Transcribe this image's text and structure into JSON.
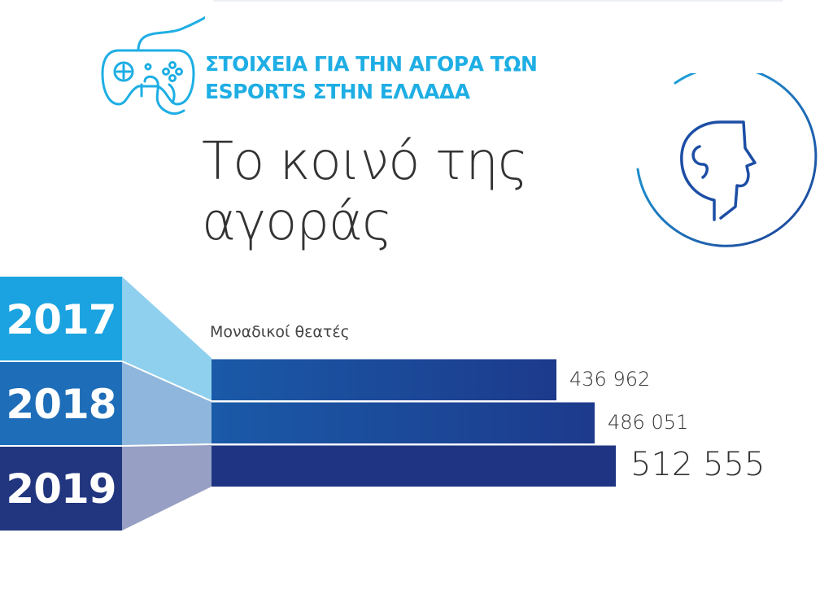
{
  "header": {
    "title_line1": "ΣΤΟΙΧΕΙΑ ΓΙΑ ΤΗΝ ΑΓΟΡΑ ΤΩΝ",
    "title_line2": "ESPORTS ΣΤΗΝ ΕΛΛΑΔΑ",
    "icon": "gamepad-icon"
  },
  "main": {
    "title_line1": "Το κοινό της",
    "title_line2": "αγοράς",
    "badge_icon": "head-profile-icon"
  },
  "colors": {
    "accent": "#1eaee4",
    "year_2017": "#1aa3e0",
    "year_2018": "#1d6db8",
    "year_2019": "#22357f",
    "bar_dark": "#1f3482"
  },
  "chart_data": {
    "type": "bar",
    "orientation": "horizontal",
    "categories": [
      "2017",
      "2018",
      "2019"
    ],
    "series": [
      {
        "name": "Μοναδικοί θεατές",
        "values": [
          436962,
          486051,
          512555
        ]
      }
    ],
    "value_labels": [
      "436 962",
      "486 051",
      "512 555"
    ],
    "legend": "top-left"
  }
}
